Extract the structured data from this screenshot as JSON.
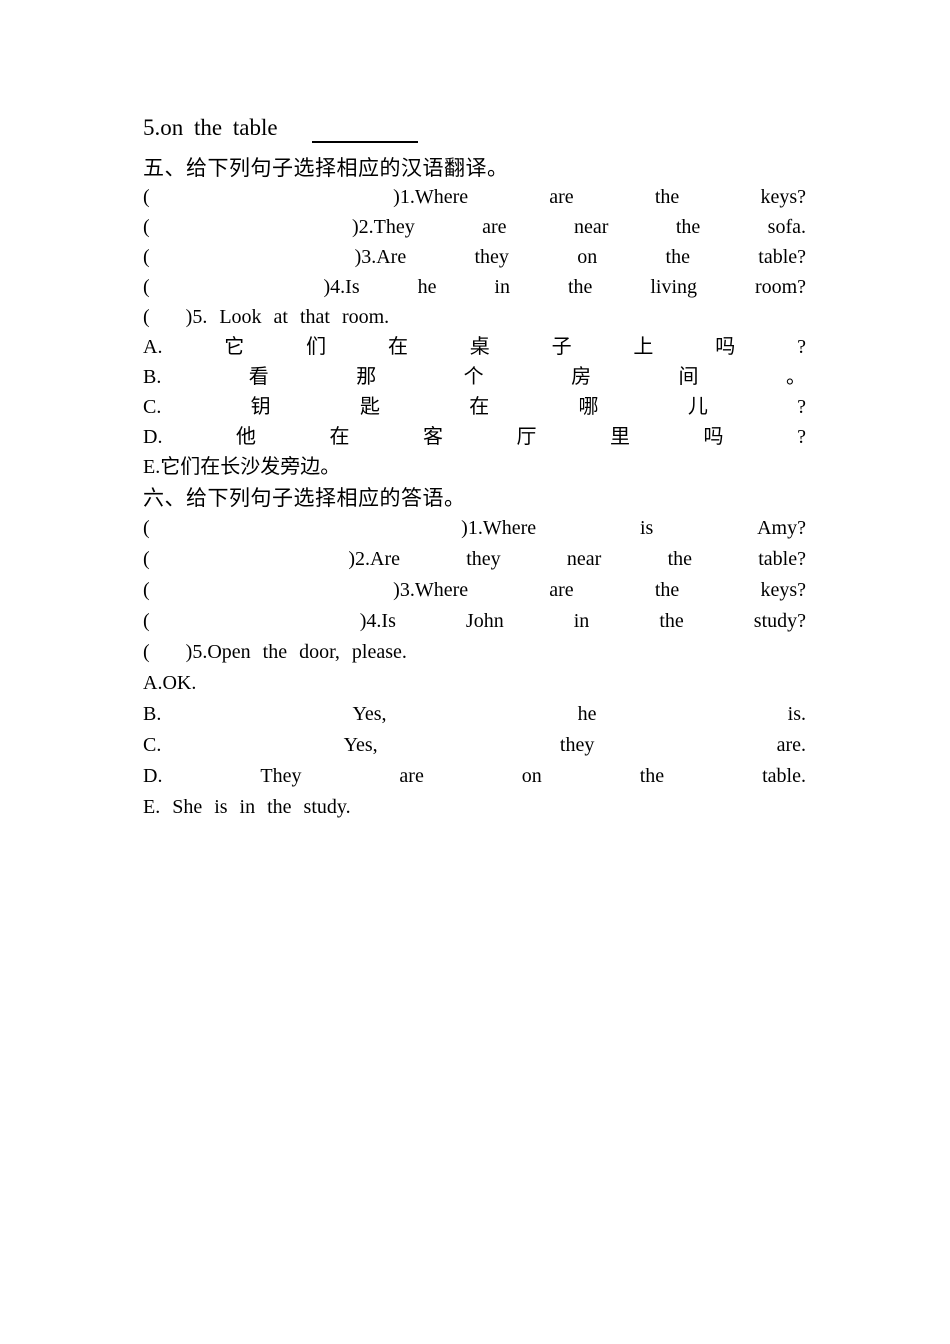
{
  "item_five": {
    "label": "5.on the table"
  },
  "section_five": {
    "heading": "五、给下列句子选择相应的汉语翻译。",
    "questions": [
      {
        "words": [
          "(",
          ")1.Where",
          "are",
          "the",
          "keys?"
        ],
        "first_gap": 3
      },
      {
        "words": [
          "(",
          ")2.They",
          "are",
          "near",
          "the",
          "sofa."
        ],
        "first_gap": 3
      },
      {
        "words": [
          "(",
          ")3.Are",
          "they",
          "on",
          "the",
          "table?"
        ],
        "first_gap": 3
      },
      {
        "words": [
          "(",
          ")4.Is",
          "he",
          "in",
          "the",
          "living",
          "room?"
        ],
        "first_gap": 3
      },
      {
        "plain": "(   )5. Look at that room."
      }
    ],
    "options": [
      {
        "words": [
          "A.",
          "它",
          "们",
          "在",
          "桌",
          "子",
          "上",
          "吗",
          "?"
        ]
      },
      {
        "words": [
          "B.",
          "看",
          "那",
          "个",
          "房",
          "间",
          "。"
        ]
      },
      {
        "words": [
          "C.",
          "钥",
          "匙",
          "在",
          "哪",
          "儿",
          "?"
        ]
      },
      {
        "words": [
          "D.",
          "他",
          "在",
          "客",
          "厅",
          "里",
          "吗",
          "?"
        ]
      },
      {
        "plain": "E.它们在长沙发旁边。"
      }
    ]
  },
  "section_six": {
    "heading": "六、给下列句子选择相应的答语。",
    "questions": [
      {
        "words": [
          "(",
          ")1.Where",
          "is",
          "Amy?"
        ],
        "first_gap": 3
      },
      {
        "words": [
          "(",
          ")2.Are",
          "they",
          "near",
          "the",
          "table?"
        ],
        "first_gap": 3
      },
      {
        "words": [
          "(",
          ")3.Where",
          "are",
          "the",
          "keys?"
        ],
        "first_gap": 3
      },
      {
        "words": [
          "(",
          ")4.Is",
          "John",
          "in",
          "the",
          "study?"
        ],
        "first_gap": 3
      },
      {
        "plain": "(   )5.Open the door, please."
      }
    ],
    "options": [
      {
        "plain": "A.OK."
      },
      {
        "words": [
          "B.",
          "Yes,",
          "he",
          "is."
        ]
      },
      {
        "words": [
          "C.",
          "Yes,",
          "they",
          "are."
        ]
      },
      {
        "words": [
          "D.",
          "They",
          "are",
          "on",
          "the",
          "table."
        ]
      },
      {
        "plain": "E. She is in the study."
      }
    ]
  }
}
